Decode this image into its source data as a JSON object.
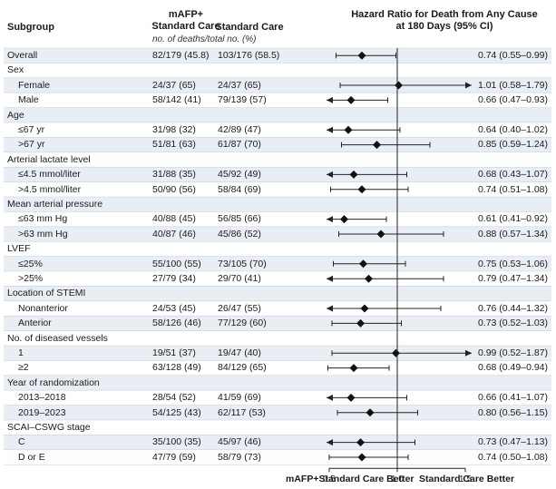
{
  "header": {
    "subgroup": "Subgroup",
    "col_mafp_line1": "mAFP+",
    "col_mafp_line2": "Standard Care",
    "col_std": "Standard Care",
    "units": "no. of deaths/total no. (%)",
    "hr_line1": "Hazard Ratio for Death from Any Cause",
    "hr_line2": "at 180 Days (95% CI)"
  },
  "footer": {
    "left_better": "mAFP+Standard Care Better",
    "right_better": "Standard Care Better"
  },
  "chart_data": {
    "type": "forest",
    "x_axis": {
      "ticks": [
        0.5,
        1.0,
        1.5
      ],
      "tick_labels": [
        "0.5",
        "1.0",
        "1.5"
      ],
      "reference": 1.0,
      "xlim": [
        0.5,
        1.5
      ]
    },
    "rows": [
      {
        "kind": "data",
        "label": "Overall",
        "indent": false,
        "mafp": "82/179 (45.8)",
        "std": "103/176 (58.5)",
        "hr": 0.74,
        "lo": 0.55,
        "hi": 0.99,
        "ci_text": "0.74 (0.55–0.99)"
      },
      {
        "kind": "group",
        "label": "Sex"
      },
      {
        "kind": "data",
        "label": "Female",
        "indent": true,
        "mafp": "24/37 (65)",
        "std": "24/37 (65)",
        "hr": 1.01,
        "lo": 0.58,
        "hi": 1.79,
        "ci_text": "1.01 (0.58–1.79)"
      },
      {
        "kind": "data",
        "label": "Male",
        "indent": true,
        "mafp": "58/142 (41)",
        "std": "79/139 (57)",
        "hr": 0.66,
        "lo": 0.47,
        "hi": 0.93,
        "ci_text": "0.66 (0.47–0.93)"
      },
      {
        "kind": "group",
        "label": "Age"
      },
      {
        "kind": "data",
        "label": "≤67 yr",
        "indent": true,
        "mafp": "31/98 (32)",
        "std": "42/89 (47)",
        "hr": 0.64,
        "lo": 0.4,
        "hi": 1.02,
        "ci_text": "0.64 (0.40–1.02)"
      },
      {
        "kind": "data",
        "label": ">67 yr",
        "indent": true,
        "mafp": "51/81 (63)",
        "std": "61/87 (70)",
        "hr": 0.85,
        "lo": 0.59,
        "hi": 1.24,
        "ci_text": "0.85 (0.59–1.24)"
      },
      {
        "kind": "group",
        "label": "Arterial lactate level"
      },
      {
        "kind": "data",
        "label": "≤4.5 mmol/liter",
        "indent": true,
        "mafp": "31/88 (35)",
        "std": "45/92 (49)",
        "hr": 0.68,
        "lo": 0.43,
        "hi": 1.07,
        "ci_text": "0.68 (0.43–1.07)"
      },
      {
        "kind": "data",
        "label": ">4.5 mmol/liter",
        "indent": true,
        "mafp": "50/90 (56)",
        "std": "58/84 (69)",
        "hr": 0.74,
        "lo": 0.51,
        "hi": 1.08,
        "ci_text": "0.74 (0.51–1.08)"
      },
      {
        "kind": "group",
        "label": "Mean arterial pressure"
      },
      {
        "kind": "data",
        "label": "≤63 mm Hg",
        "indent": true,
        "mafp": "40/88 (45)",
        "std": "56/85 (66)",
        "hr": 0.61,
        "lo": 0.41,
        "hi": 0.92,
        "ci_text": "0.61 (0.41–0.92)"
      },
      {
        "kind": "data",
        "label": ">63 mm Hg",
        "indent": true,
        "mafp": "40/87 (46)",
        "std": "45/86 (52)",
        "hr": 0.88,
        "lo": 0.57,
        "hi": 1.34,
        "ci_text": "0.88 (0.57–1.34)"
      },
      {
        "kind": "group",
        "label": "LVEF"
      },
      {
        "kind": "data",
        "label": "≤25%",
        "indent": true,
        "mafp": "55/100 (55)",
        "std": "73/105 (70)",
        "hr": 0.75,
        "lo": 0.53,
        "hi": 1.06,
        "ci_text": "0.75 (0.53–1.06)"
      },
      {
        "kind": "data",
        "label": ">25%",
        "indent": true,
        "mafp": "27/79 (34)",
        "std": "29/70 (41)",
        "hr": 0.79,
        "lo": 0.47,
        "hi": 1.34,
        "ci_text": "0.79 (0.47–1.34)"
      },
      {
        "kind": "group",
        "label": "Location of STEMI"
      },
      {
        "kind": "data",
        "label": "Nonanterior",
        "indent": true,
        "mafp": "24/53 (45)",
        "std": "26/47 (55)",
        "hr": 0.76,
        "lo": 0.44,
        "hi": 1.32,
        "ci_text": "0.76 (0.44–1.32)"
      },
      {
        "kind": "data",
        "label": "Anterior",
        "indent": true,
        "mafp": "58/126 (46)",
        "std": "77/129 (60)",
        "hr": 0.73,
        "lo": 0.52,
        "hi": 1.03,
        "ci_text": "0.73 (0.52–1.03)"
      },
      {
        "kind": "group",
        "label": "No. of diseased vessels"
      },
      {
        "kind": "data",
        "label": "1",
        "indent": true,
        "mafp": "19/51 (37)",
        "std": "19/47 (40)",
        "hr": 0.99,
        "lo": 0.52,
        "hi": 1.87,
        "ci_text": "0.99 (0.52–1.87)"
      },
      {
        "kind": "data",
        "label": "≥2",
        "indent": true,
        "mafp": "63/128 (49)",
        "std": "84/129 (65)",
        "hr": 0.68,
        "lo": 0.49,
        "hi": 0.94,
        "ci_text": "0.68 (0.49–0.94)"
      },
      {
        "kind": "group",
        "label": "Year of randomization"
      },
      {
        "kind": "data",
        "label": "2013–2018",
        "indent": true,
        "mafp": "28/54 (52)",
        "std": "41/59 (69)",
        "hr": 0.66,
        "lo": 0.41,
        "hi": 1.07,
        "ci_text": "0.66 (0.41–1.07)"
      },
      {
        "kind": "data",
        "label": "2019–2023",
        "indent": true,
        "mafp": "54/125 (43)",
        "std": "62/117 (53)",
        "hr": 0.8,
        "lo": 0.56,
        "hi": 1.15,
        "ci_text": "0.80 (0.56–1.15)"
      },
      {
        "kind": "group",
        "label": "SCAI–CSWG stage"
      },
      {
        "kind": "data",
        "label": "C",
        "indent": true,
        "mafp": "35/100 (35)",
        "std": "45/97 (46)",
        "hr": 0.73,
        "lo": 0.47,
        "hi": 1.13,
        "ci_text": "0.73 (0.47–1.13)"
      },
      {
        "kind": "data",
        "label": "D or E",
        "indent": true,
        "mafp": "47/79 (59)",
        "std": "58/79 (73)",
        "hr": 0.74,
        "lo": 0.5,
        "hi": 1.08,
        "ci_text": "0.74 (0.50–1.08)"
      }
    ]
  }
}
